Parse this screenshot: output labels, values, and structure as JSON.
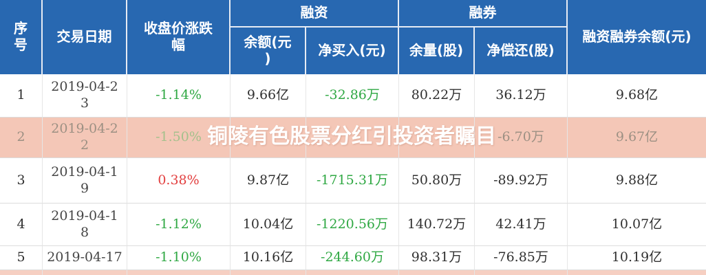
{
  "overlay_title": "铜陵有色股票分红引投资者瞩目",
  "colors": {
    "header_bg": "#2868b1",
    "row_highlight": "#f4c7b7",
    "value_down_green": "#2fa843",
    "value_up_red": "#e23e3e",
    "header_text": "#ffffff"
  },
  "chart_data": {
    "type": "table",
    "title": "铜陵有色股票分红引投资者瞩目",
    "header": {
      "seq": "序\n号",
      "date": "交易日期",
      "change": "收盘价涨跌\n幅",
      "financing_group": "融资",
      "balance": "余额(元\n)",
      "net_buy": "净买入(元)",
      "securities_group": "融券",
      "volume": "余量(股)",
      "net_repay": "净偿还(股)",
      "total": "融资融券余额(元)"
    },
    "rows": [
      {
        "seq": "1",
        "date": "2019-04-2\n3",
        "change": "-1.14%",
        "balance": "9.66亿",
        "net_buy": "-32.86万",
        "volume": "80.22万",
        "net_repay": "36.12万",
        "total": "9.68亿"
      },
      {
        "seq": "2",
        "date": "2019-04-2\n2",
        "change": "-1.50%",
        "balance": "",
        "net_buy": "",
        "volume": "",
        "net_repay": "-6.70万",
        "total": "9.67亿"
      },
      {
        "seq": "3",
        "date": "2019-04-1\n9",
        "change": "0.38%",
        "balance": "9.87亿",
        "net_buy": "-1715.31万",
        "volume": "50.80万",
        "net_repay": "-89.92万",
        "total": "9.88亿"
      },
      {
        "seq": "4",
        "date": "2019-04-1\n8",
        "change": "-1.12%",
        "balance": "10.04亿",
        "net_buy": "-1220.56万",
        "volume": "140.72万",
        "net_repay": "42.41万",
        "total": "10.07亿"
      },
      {
        "seq": "5",
        "date": "2019-04-17",
        "change": "-1.10%",
        "balance": "10.16亿",
        "net_buy": "-244.60万",
        "volume": "98.31万",
        "net_repay": "-76.85万",
        "total": "10.19亿"
      }
    ]
  }
}
